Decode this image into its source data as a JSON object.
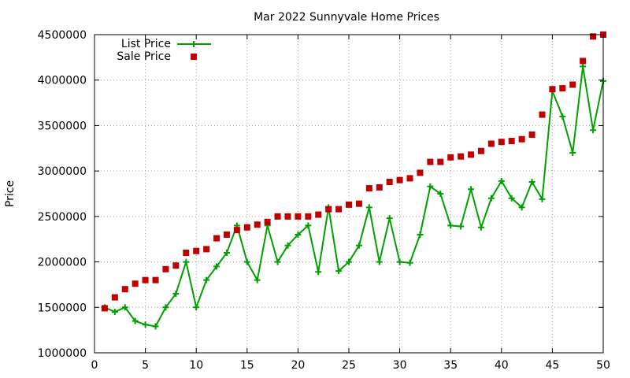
{
  "chart_data": {
    "type": "line",
    "title": "Mar 2022 Sunnyvale Home Prices",
    "xlabel": "",
    "ylabel": "Price",
    "xlim": [
      0,
      50
    ],
    "ylim": [
      1000000,
      4500000
    ],
    "x_ticks": [
      0,
      5,
      10,
      15,
      20,
      25,
      30,
      35,
      40,
      45,
      50
    ],
    "y_ticks": [
      1000000,
      1500000,
      2000000,
      2500000,
      3000000,
      3500000,
      4000000,
      4500000
    ],
    "grid": true,
    "legend_position": "top-left",
    "series": [
      {
        "name": "List Price",
        "style": "line with plus markers",
        "color": "#00a000",
        "x": [
          1,
          2,
          3,
          4,
          5,
          6,
          7,
          8,
          9,
          10,
          11,
          12,
          13,
          14,
          15,
          16,
          17,
          18,
          19,
          20,
          21,
          22,
          23,
          24,
          25,
          26,
          27,
          28,
          29,
          30,
          31,
          32,
          33,
          34,
          35,
          36,
          37,
          38,
          39,
          40,
          41,
          42,
          43,
          44,
          45,
          46,
          47,
          48,
          49,
          50
        ],
        "values": [
          1500000,
          1450000,
          1500000,
          1350000,
          1310000,
          1290000,
          1500000,
          1650000,
          2000000,
          1500000,
          1800000,
          1950000,
          2100000,
          2400000,
          2000000,
          1800000,
          2400000,
          2000000,
          2180000,
          2300000,
          2400000,
          1890000,
          2600000,
          1900000,
          2000000,
          2180000,
          2600000,
          2000000,
          2480000,
          2000000,
          1990000,
          2300000,
          2830000,
          2750000,
          2400000,
          2390000,
          2800000,
          2380000,
          2700000,
          2890000,
          2700000,
          2600000,
          2880000,
          2690000,
          3880000,
          3600000,
          3200000,
          4150000,
          3450000,
          3990000
        ]
      },
      {
        "name": "Sale Price",
        "style": "square markers",
        "color": "#c00000",
        "x": [
          1,
          2,
          3,
          4,
          5,
          6,
          7,
          8,
          9,
          10,
          11,
          12,
          13,
          14,
          15,
          16,
          17,
          18,
          19,
          20,
          21,
          22,
          23,
          24,
          25,
          26,
          27,
          28,
          29,
          30,
          31,
          32,
          33,
          34,
          35,
          36,
          37,
          38,
          39,
          40,
          41,
          42,
          43,
          44,
          45,
          46,
          47,
          48,
          49,
          50
        ],
        "values": [
          1490000,
          1610000,
          1700000,
          1760000,
          1800000,
          1800000,
          1920000,
          1960000,
          2100000,
          2120000,
          2140000,
          2260000,
          2300000,
          2350000,
          2380000,
          2410000,
          2440000,
          2500000,
          2500000,
          2500000,
          2500000,
          2520000,
          2580000,
          2580000,
          2630000,
          2640000,
          2810000,
          2820000,
          2880000,
          2900000,
          2920000,
          2980000,
          3100000,
          3100000,
          3150000,
          3160000,
          3180000,
          3220000,
          3300000,
          3320000,
          3330000,
          3350000,
          3400000,
          3620000,
          3900000,
          3910000,
          3950000,
          4210000,
          4480000,
          4500000
        ]
      }
    ]
  }
}
